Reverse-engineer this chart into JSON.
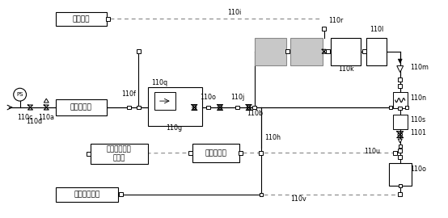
{
  "bg_color": "#ffffff",
  "line_color": "#000000",
  "gray_box_color": "#c8c8c8",
  "dashed_color": "#888888",
  "labels": {
    "air_inlet": "에어인렛",
    "sample_inlet": "시료수인렛",
    "abnormal_outlet": "비정상처리수\n마웃렛",
    "sample_tank": "시료수탱크",
    "sample_drain": "시료수드레인",
    "110c": "110c",
    "110d": "110d",
    "110a": "110a",
    "110f": "110f",
    "110q": "110q",
    "110g": "110g",
    "110o": "110o",
    "110j": "110j",
    "110b": "110b",
    "110h": "110h",
    "110k": "110k",
    "110r": "110r",
    "110i": "110i",
    "110l": "110l",
    "110m": "110m",
    "110n": "110n",
    "110s": "110s",
    "110t": "1101",
    "110u": "110u",
    "110oo": "110o",
    "110v": "110v"
  },
  "figsize": [
    5.54,
    2.7
  ],
  "dpi": 100
}
